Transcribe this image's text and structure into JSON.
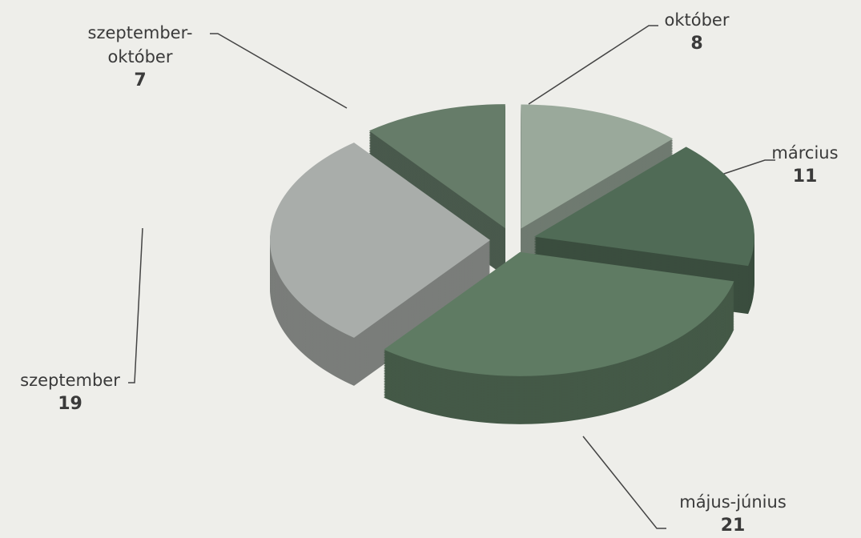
{
  "chart_data": {
    "type": "pie",
    "categories": [
      "október",
      "március",
      "május-június",
      "szeptember",
      "szeptember-október"
    ],
    "values": [
      8,
      11,
      21,
      19,
      7
    ],
    "colors": [
      "#9aa99b",
      "#506b56",
      "#5f7b63",
      "#a9adaa",
      "#667c69"
    ]
  }
}
